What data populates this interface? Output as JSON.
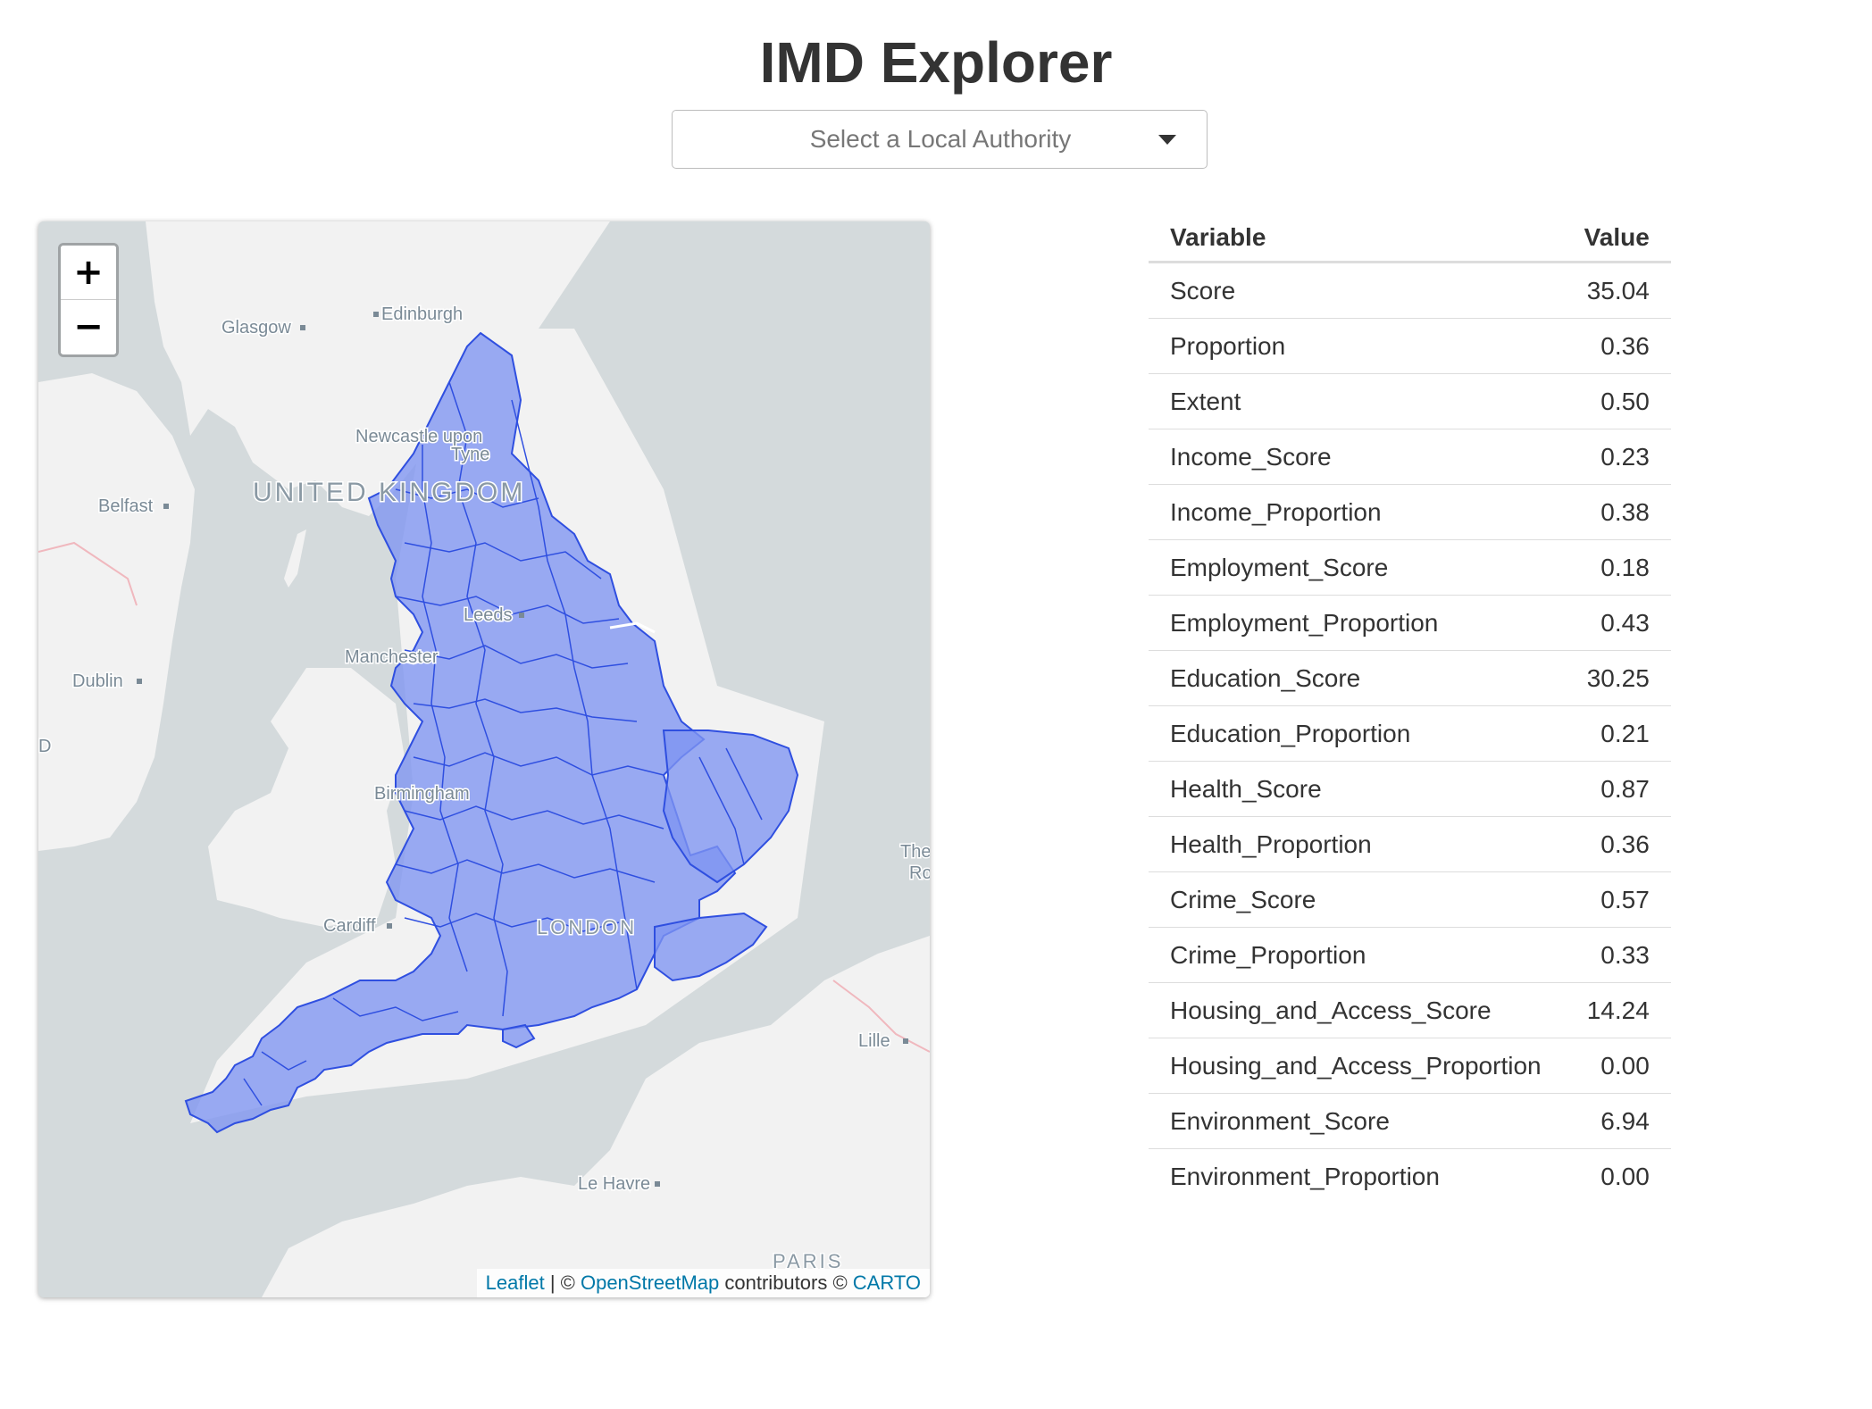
{
  "header": {
    "title": "IMD Explorer"
  },
  "selector": {
    "placeholder": "Select a Local Authority"
  },
  "map": {
    "zoom_in": "+",
    "zoom_out": "−",
    "places": {
      "edinburgh": "Edinburgh",
      "glasgow": "Glasgow",
      "newcastle_1": "Newcastle upon",
      "newcastle_2": "Tyne",
      "united_kingdom": "UNITED KINGDOM",
      "belfast": "Belfast",
      "leeds": "Leeds",
      "manchester": "Manchester",
      "dublin": "Dublin",
      "ireland_fragment": "D",
      "birmingham": "Birmingham",
      "cardiff": "Cardiff",
      "london": "LONDON",
      "netherlands_1": "The",
      "netherlands_2": "Ro",
      "lille": "Lille",
      "le_havre": "Le Havre",
      "paris": "PARIS"
    },
    "attribution": {
      "leaflet": "Leaflet",
      "sep": " | © ",
      "osm": "OpenStreetMap",
      "contributors": " contributors © ",
      "carto": "CARTO"
    },
    "colors": {
      "sea": "#d4dadc",
      "land": "#f2f2f2",
      "polygon_fill": "#7f95f2",
      "polygon_stroke": "#2f4fe0"
    }
  },
  "table": {
    "headers": {
      "variable": "Variable",
      "value": "Value"
    },
    "rows": [
      {
        "variable": "Score",
        "value": "35.04"
      },
      {
        "variable": "Proportion",
        "value": "0.36"
      },
      {
        "variable": "Extent",
        "value": "0.50"
      },
      {
        "variable": "Income_Score",
        "value": "0.23"
      },
      {
        "variable": "Income_Proportion",
        "value": "0.38"
      },
      {
        "variable": "Employment_Score",
        "value": "0.18"
      },
      {
        "variable": "Employment_Proportion",
        "value": "0.43"
      },
      {
        "variable": "Education_Score",
        "value": "30.25"
      },
      {
        "variable": "Education_Proportion",
        "value": "0.21"
      },
      {
        "variable": "Health_Score",
        "value": "0.87"
      },
      {
        "variable": "Health_Proportion",
        "value": "0.36"
      },
      {
        "variable": "Crime_Score",
        "value": "0.57"
      },
      {
        "variable": "Crime_Proportion",
        "value": "0.33"
      },
      {
        "variable": "Housing_and_Access_Score",
        "value": "14.24"
      },
      {
        "variable": "Housing_and_Access_Proportion",
        "value": "0.00"
      },
      {
        "variable": "Environment_Score",
        "value": "6.94"
      },
      {
        "variable": "Environment_Proportion",
        "value": "0.00"
      }
    ]
  }
}
